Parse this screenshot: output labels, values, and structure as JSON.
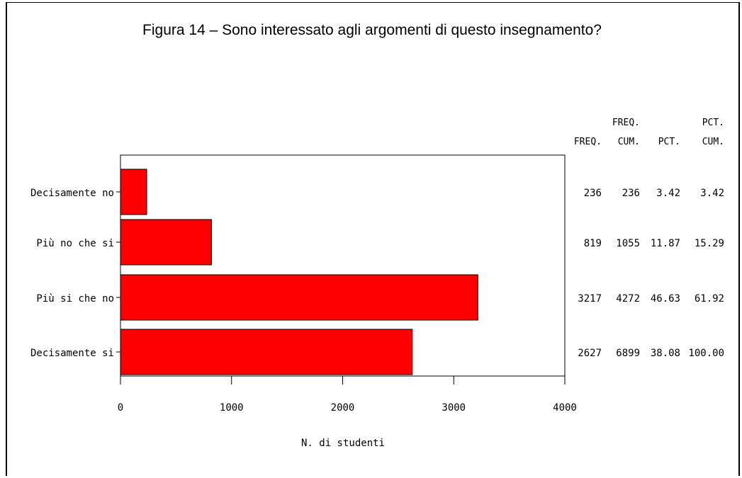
{
  "chart_data": {
    "type": "bar",
    "orientation": "horizontal",
    "title": "Figura 14 – Sono interessato agli argomenti di questo insegnamento?",
    "xlabel": "N. di studenti",
    "ylabel": "",
    "xlim": [
      0,
      4000
    ],
    "xticks": [
      0,
      1000,
      2000,
      3000,
      4000
    ],
    "bar_color": "#ff0000",
    "categories": [
      "Decisamente no",
      "Più no che si",
      "Più si che no",
      "Decisamente si"
    ],
    "values": [
      236,
      819,
      3217,
      2627
    ],
    "table": {
      "headers": [
        {
          "line1": "",
          "line2": "FREQ."
        },
        {
          "line1": "FREQ.",
          "line2": "CUM."
        },
        {
          "line1": "",
          "line2": "PCT."
        },
        {
          "line1": "PCT.",
          "line2": "CUM."
        }
      ],
      "rows": [
        [
          "236",
          "236",
          "3.42",
          "3.42"
        ],
        [
          "819",
          "1055",
          "11.87",
          "15.29"
        ],
        [
          "3217",
          "4272",
          "46.63",
          "61.92"
        ],
        [
          "2627",
          "6899",
          "38.08",
          "100.00"
        ]
      ]
    }
  }
}
